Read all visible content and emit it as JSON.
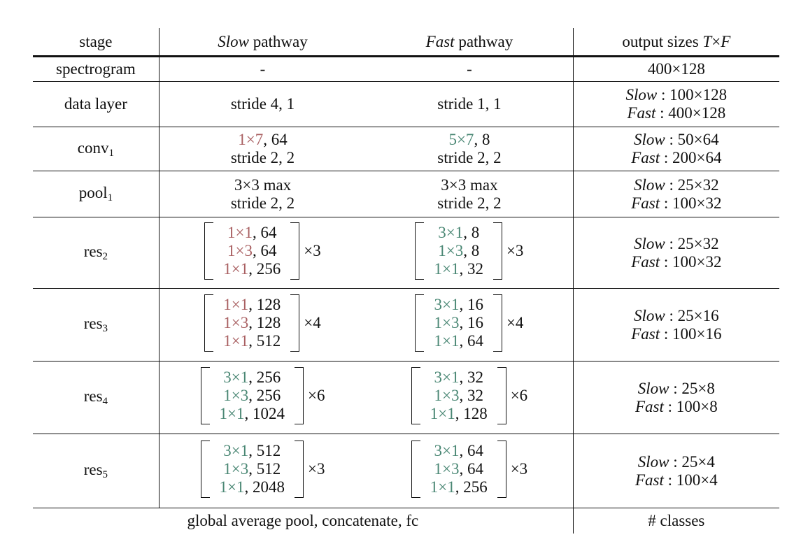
{
  "headers": {
    "stage": "stage",
    "slow_em": "Slow",
    "slow_rest": " pathway",
    "fast_em": "Fast",
    "fast_rest": " pathway",
    "out_pre": "output sizes ",
    "out_T": "T",
    "out_x": "×",
    "out_F": "F"
  },
  "rows": [
    {
      "stage": "spectrogram",
      "slow": "-",
      "fast": "-",
      "out": "400×128"
    },
    {
      "stage": "data layer",
      "slow": "stride 4, 1",
      "fast": "stride 1, 1",
      "out_slow": "100×128",
      "out_fast": "400×128"
    },
    {
      "stage": "conv",
      "sub": "1",
      "slow_k": "1×7",
      "slow_c": ", 64",
      "slow_s": "stride 2, 2",
      "fast_k": "5×7",
      "fast_c": ", 8",
      "fast_s": "stride 2, 2",
      "out_slow": "50×64",
      "out_fast": "200×64"
    },
    {
      "stage": "pool",
      "sub": "1",
      "slow_l1": "3×3 max",
      "slow_s": "stride 2, 2",
      "fast_l1": "3×3 max",
      "fast_s": "stride 2, 2",
      "out_slow": "25×32",
      "out_fast": "100×32"
    },
    {
      "stage": "res",
      "sub": "2",
      "slow": [
        [
          "1×1",
          ", 64"
        ],
        [
          "1×3",
          ", 64"
        ],
        [
          "1×1",
          ", 256"
        ]
      ],
      "slow_mult": "×3",
      "fast": [
        [
          "3×1",
          ", 8"
        ],
        [
          "1×3",
          ", 8"
        ],
        [
          "1×1",
          ", 32"
        ]
      ],
      "fast_mult": "×3",
      "out_slow": "25×32",
      "out_fast": "100×32"
    },
    {
      "stage": "res",
      "sub": "3",
      "slow": [
        [
          "1×1",
          ", 128"
        ],
        [
          "1×3",
          ", 128"
        ],
        [
          "1×1",
          ", 512"
        ]
      ],
      "slow_mult": "×4",
      "fast": [
        [
          "3×1",
          ", 16"
        ],
        [
          "1×3",
          ", 16"
        ],
        [
          "1×1",
          ", 64"
        ]
      ],
      "fast_mult": "×4",
      "out_slow": "25×16",
      "out_fast": "100×16"
    },
    {
      "stage": "res",
      "sub": "4",
      "slow": [
        [
          "3×1",
          ", 256"
        ],
        [
          "1×3",
          ", 256"
        ],
        [
          "1×1",
          ", 1024"
        ]
      ],
      "slow_mult": "×6",
      "fast": [
        [
          "3×1",
          ", 32"
        ],
        [
          "1×3",
          ", 32"
        ],
        [
          "1×1",
          ", 128"
        ]
      ],
      "fast_mult": "×6",
      "out_slow": "25×8",
      "out_fast": "100×8"
    },
    {
      "stage": "res",
      "sub": "5",
      "slow": [
        [
          "3×1",
          ", 512"
        ],
        [
          "1×3",
          ", 512"
        ],
        [
          "1×1",
          ", 2048"
        ]
      ],
      "slow_mult": "×3",
      "fast": [
        [
          "3×1",
          ", 64"
        ],
        [
          "1×3",
          ", 64"
        ],
        [
          "1×1",
          ", 256"
        ]
      ],
      "fast_mult": "×3",
      "out_slow": "25×4",
      "out_fast": "100×4"
    }
  ],
  "out_labels": {
    "slow": "Slow",
    "fast": "Fast",
    "sep": " : "
  },
  "footer": {
    "label": "global average pool, concatenate, fc",
    "out": "# classes"
  },
  "colors": {
    "slow_kernel": "#a96062",
    "fast_kernel": "#4a8774"
  }
}
